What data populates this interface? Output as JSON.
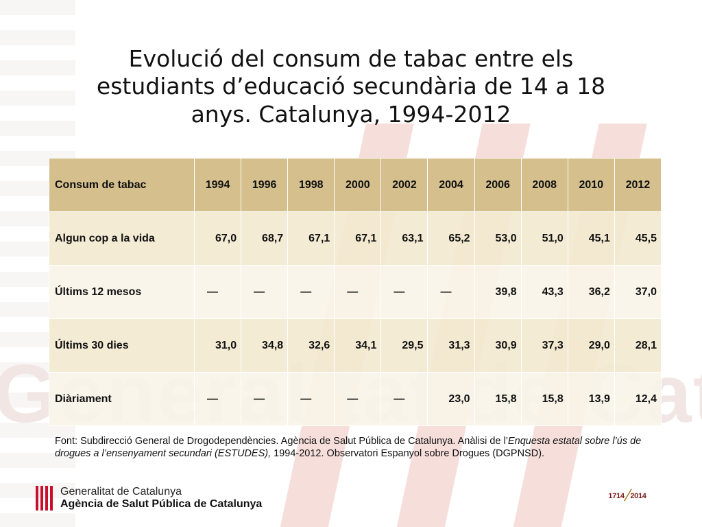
{
  "title": "Evolució del consum de tabac entre els estudiants d’educació secundària de 14 a 18 anys. Catalunya, 1994-2012",
  "table": {
    "header_label": "Consum de tabac",
    "years": [
      "1994",
      "1996",
      "1998",
      "2000",
      "2002",
      "2004",
      "2006",
      "2008",
      "2010",
      "2012"
    ],
    "rows": [
      {
        "label": "Algun cop a la vida",
        "values": [
          "67,0",
          "68,7",
          "67,1",
          "67,1",
          "63,1",
          "65,2",
          "53,0",
          "51,0",
          "45,1",
          "45,5"
        ]
      },
      {
        "label": "Últims 12 mesos",
        "values": [
          "—",
          "—",
          "—",
          "—",
          "—",
          "—",
          "39,8",
          "43,3",
          "36,2",
          "37,0"
        ]
      },
      {
        "label": "Últims 30 dies",
        "values": [
          "31,0",
          "34,8",
          "32,6",
          "34,1",
          "29,5",
          "31,3",
          "30,9",
          "37,3",
          "29,0",
          "28,1"
        ]
      },
      {
        "label": "Diàriament",
        "values": [
          "—",
          "—",
          "—",
          "—",
          "—",
          "23,0",
          "15,8",
          "15,8",
          "13,9",
          "12,4"
        ]
      }
    ]
  },
  "source": {
    "prefix": "Font: Subdirecció General de Drogodependències. Agència de Salut Pública de Catalunya. Anàlisi de l’",
    "italic": "Enquesta estatal sobre l’ús de drogues a l’ensenyament secundari (ESTUDES),",
    "suffix": " 1994-2012. Observatori Espanyol sobre Drogues (DGPNSD)."
  },
  "logo": {
    "line1": "Generalitat de Catalunya",
    "line2": "Agència de Salut Pública de Catalunya",
    "icon": "senyera-icon",
    "color": "#c8102e"
  },
  "anniversary": {
    "year_start": "1714",
    "year_end": "2014"
  },
  "watermark": {
    "text": "Generalitat de Catalunya"
  },
  "colors": {
    "header_bg": "#d4bf8d",
    "row_odd": "#f2e9d0",
    "row_even": "#f9f4e8"
  }
}
